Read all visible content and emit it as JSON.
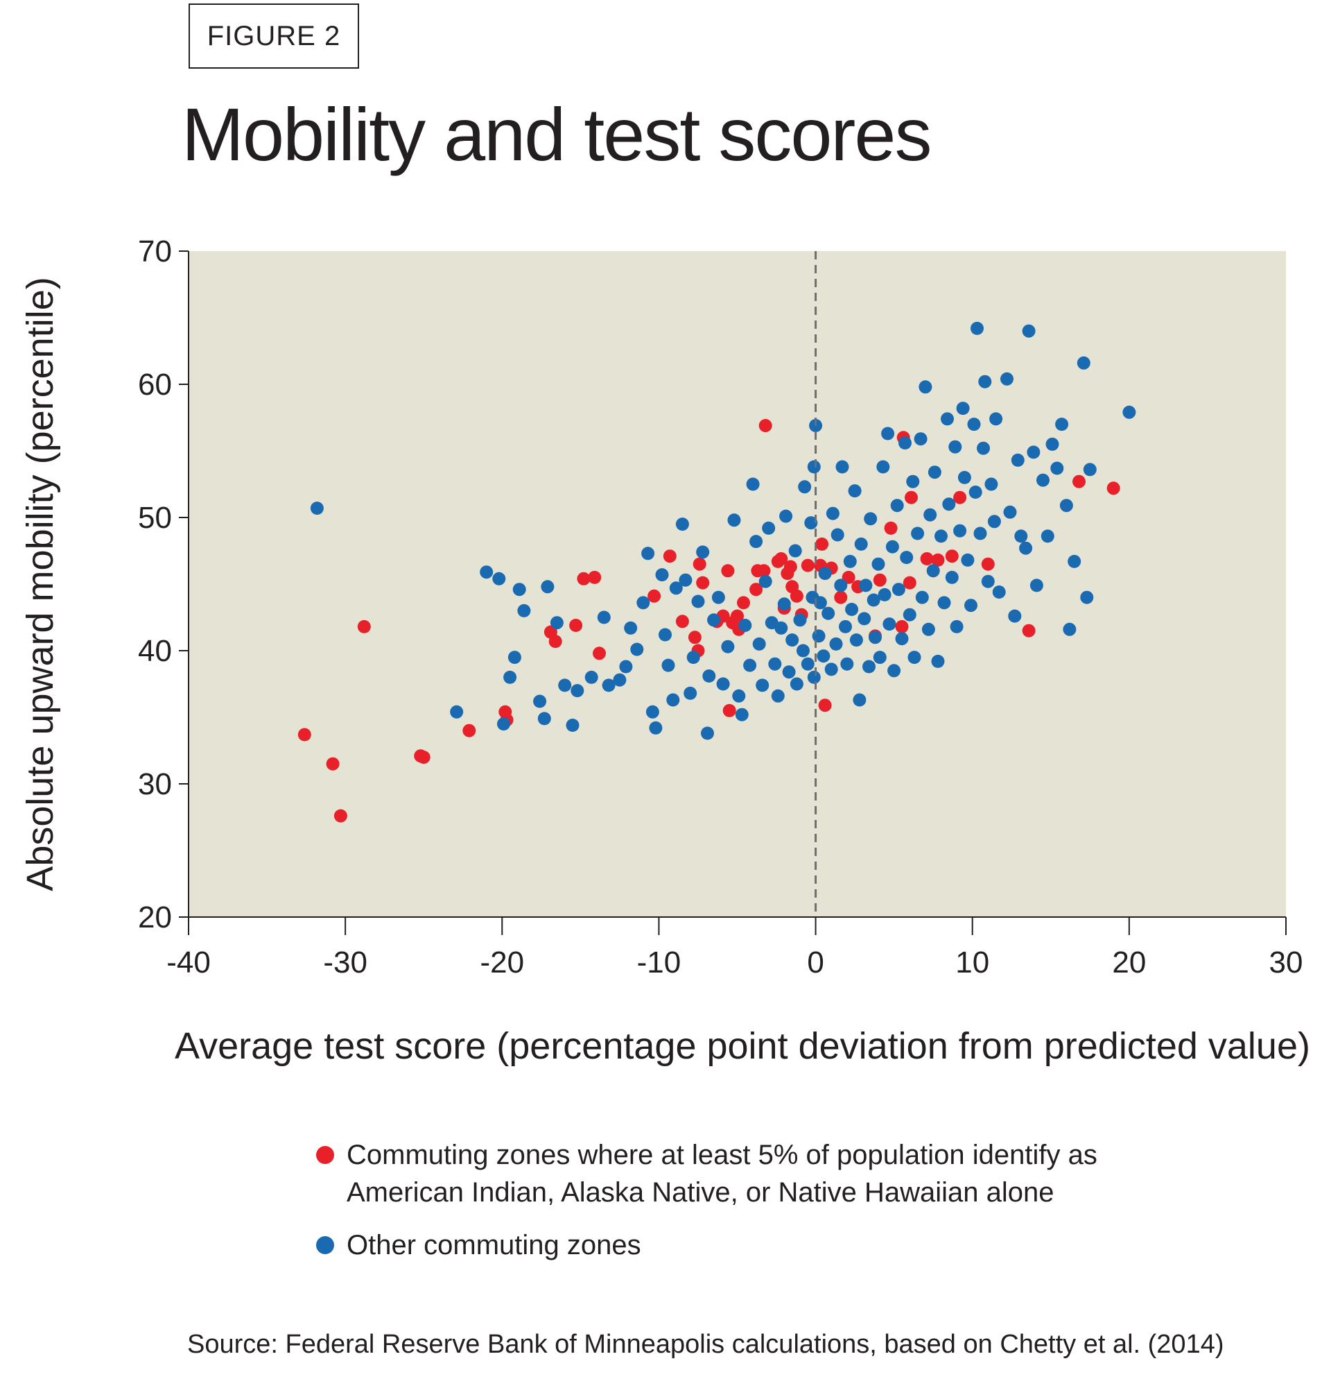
{
  "figure_label": "FIGURE 2",
  "colors": {
    "plot_background": "#e5e3d3",
    "series_red": "#e8202a",
    "series_blue": "#1a6ab2",
    "zero_line": "#6d6e71",
    "axis": "#231f20"
  },
  "legend": {
    "items": [
      {
        "color": "#e8202a",
        "line1": "Commuting zones where at least 5% of population identify as",
        "line2": "American Indian, Alaska Native, or Native Hawaiian alone"
      },
      {
        "color": "#1a6ab2",
        "line1": "Other commuting zones",
        "line2": ""
      }
    ]
  },
  "source": "Source: Federal Reserve Bank of Minneapolis calculations, based on Chetty et al. (2014)",
  "chart_data": {
    "type": "scatter",
    "title": "Mobility and test scores",
    "xlabel": "Average test score (percentage point deviation from predicted value)",
    "ylabel": "Absolute upward mobility (percentile)",
    "xlim": [
      -40,
      30
    ],
    "ylim": [
      20,
      70
    ],
    "x_ticks": [
      -40,
      -30,
      -20,
      -10,
      0,
      10,
      20,
      30
    ],
    "y_ticks": [
      20,
      30,
      40,
      50,
      60,
      70
    ],
    "x_tick_labels": [
      "-40",
      "-30",
      "-20",
      "-10",
      "0",
      "10",
      "20",
      "30"
    ],
    "y_tick_labels": [
      "20",
      "30",
      "40",
      "50",
      "60",
      "70"
    ],
    "reference_line": {
      "x": 0,
      "style": "dashed"
    },
    "grid": false,
    "legend_position": "bottom",
    "series": [
      {
        "name": "Commuting zones where at least 5% of population identify as American Indian, Alaska Native, or Native Hawaiian alone",
        "color": "#e8202a",
        "points": [
          [
            -32.6,
            33.7
          ],
          [
            -30.8,
            31.5
          ],
          [
            -30.3,
            27.6
          ],
          [
            -28.8,
            41.8
          ],
          [
            -25.2,
            32.1
          ],
          [
            -25.0,
            32.0
          ],
          [
            -22.1,
            34.0
          ],
          [
            -19.8,
            35.4
          ],
          [
            -19.7,
            34.8
          ],
          [
            -16.9,
            41.4
          ],
          [
            -16.6,
            40.7
          ],
          [
            -15.3,
            41.9
          ],
          [
            -14.8,
            45.4
          ],
          [
            -14.1,
            45.5
          ],
          [
            -13.8,
            39.8
          ],
          [
            -10.3,
            44.1
          ],
          [
            -9.3,
            47.1
          ],
          [
            -8.5,
            42.2
          ],
          [
            -7.7,
            41.0
          ],
          [
            -7.5,
            40.0
          ],
          [
            -7.2,
            45.1
          ],
          [
            -7.4,
            46.5
          ],
          [
            -6.3,
            42.2
          ],
          [
            -5.9,
            42.6
          ],
          [
            -5.5,
            35.5
          ],
          [
            -5.6,
            46.0
          ],
          [
            -5.3,
            42.1
          ],
          [
            -5.0,
            42.6
          ],
          [
            -4.9,
            41.6
          ],
          [
            -4.6,
            43.6
          ],
          [
            -3.8,
            44.6
          ],
          [
            -3.7,
            46.0
          ],
          [
            -3.3,
            46.0
          ],
          [
            -3.2,
            56.9
          ],
          [
            -2.4,
            46.7
          ],
          [
            -2.2,
            46.9
          ],
          [
            -2.0,
            43.2
          ],
          [
            -1.8,
            45.8
          ],
          [
            -1.6,
            46.3
          ],
          [
            -1.5,
            44.8
          ],
          [
            -1.2,
            44.1
          ],
          [
            -0.9,
            42.7
          ],
          [
            -0.5,
            46.4
          ],
          [
            0.3,
            46.4
          ],
          [
            0.4,
            48.0
          ],
          [
            0.6,
            35.9
          ],
          [
            1.0,
            46.2
          ],
          [
            1.6,
            44.0
          ],
          [
            2.1,
            45.5
          ],
          [
            2.7,
            44.8
          ],
          [
            3.8,
            41.1
          ],
          [
            4.1,
            45.3
          ],
          [
            4.8,
            49.2
          ],
          [
            5.5,
            41.8
          ],
          [
            5.6,
            56.0
          ],
          [
            6.0,
            45.1
          ],
          [
            6.1,
            51.5
          ],
          [
            7.1,
            46.9
          ],
          [
            7.8,
            46.8
          ],
          [
            8.7,
            47.1
          ],
          [
            9.2,
            51.5
          ],
          [
            11.0,
            46.5
          ],
          [
            13.6,
            41.5
          ],
          [
            16.8,
            52.7
          ],
          [
            19.0,
            52.2
          ]
        ]
      },
      {
        "name": "Other commuting zones",
        "color": "#1a6ab2",
        "points": [
          [
            -31.8,
            50.7
          ],
          [
            -22.9,
            35.4
          ],
          [
            -21.0,
            45.9
          ],
          [
            -20.2,
            45.4
          ],
          [
            -19.9,
            34.5
          ],
          [
            -19.5,
            38.0
          ],
          [
            -19.2,
            39.5
          ],
          [
            -18.9,
            44.6
          ],
          [
            -18.6,
            43.0
          ],
          [
            -17.6,
            36.2
          ],
          [
            -17.3,
            34.9
          ],
          [
            -17.1,
            44.8
          ],
          [
            -16.5,
            42.1
          ],
          [
            -16.0,
            37.4
          ],
          [
            -15.5,
            34.4
          ],
          [
            -15.2,
            37.0
          ],
          [
            -14.3,
            38.0
          ],
          [
            -13.5,
            42.5
          ],
          [
            -13.2,
            37.4
          ],
          [
            -12.5,
            37.8
          ],
          [
            -12.1,
            38.8
          ],
          [
            -11.8,
            41.7
          ],
          [
            -11.4,
            40.1
          ],
          [
            -11.0,
            43.6
          ],
          [
            -10.7,
            47.3
          ],
          [
            -10.4,
            35.4
          ],
          [
            -10.2,
            34.2
          ],
          [
            -9.8,
            45.7
          ],
          [
            -9.6,
            41.2
          ],
          [
            -9.4,
            38.9
          ],
          [
            -9.1,
            36.3
          ],
          [
            -8.9,
            44.7
          ],
          [
            -8.5,
            49.5
          ],
          [
            -8.3,
            45.3
          ],
          [
            -8.0,
            36.8
          ],
          [
            -7.8,
            39.5
          ],
          [
            -7.5,
            43.7
          ],
          [
            -7.2,
            47.4
          ],
          [
            -6.9,
            33.8
          ],
          [
            -6.8,
            38.1
          ],
          [
            -6.5,
            42.3
          ],
          [
            -6.2,
            44.0
          ],
          [
            -5.9,
            37.5
          ],
          [
            -5.6,
            40.3
          ],
          [
            -5.2,
            49.8
          ],
          [
            -4.9,
            36.6
          ],
          [
            -4.7,
            35.2
          ],
          [
            -4.5,
            41.9
          ],
          [
            -4.2,
            38.9
          ],
          [
            -4.0,
            52.5
          ],
          [
            -3.8,
            48.2
          ],
          [
            -3.6,
            40.5
          ],
          [
            -3.4,
            37.4
          ],
          [
            -3.2,
            45.2
          ],
          [
            -3.0,
            49.2
          ],
          [
            -2.8,
            42.1
          ],
          [
            -2.6,
            39.0
          ],
          [
            -2.4,
            36.6
          ],
          [
            -2.2,
            41.7
          ],
          [
            -2.0,
            43.5
          ],
          [
            -1.9,
            50.1
          ],
          [
            -1.7,
            38.4
          ],
          [
            -1.5,
            40.8
          ],
          [
            -1.3,
            47.5
          ],
          [
            -1.2,
            37.5
          ],
          [
            -1.0,
            42.3
          ],
          [
            -0.8,
            40.0
          ],
          [
            -0.7,
            52.3
          ],
          [
            -0.5,
            39.0
          ],
          [
            -0.3,
            49.6
          ],
          [
            -0.2,
            44.0
          ],
          [
            -0.1,
            53.8
          ],
          [
            -0.1,
            38.0
          ],
          [
            0.0,
            56.9
          ],
          [
            0.2,
            41.1
          ],
          [
            0.3,
            43.6
          ],
          [
            0.5,
            39.6
          ],
          [
            0.6,
            45.8
          ],
          [
            0.8,
            42.8
          ],
          [
            1.0,
            38.6
          ],
          [
            1.1,
            50.3
          ],
          [
            1.3,
            40.5
          ],
          [
            1.4,
            48.7
          ],
          [
            1.6,
            44.9
          ],
          [
            1.7,
            53.8
          ],
          [
            1.9,
            41.8
          ],
          [
            2.0,
            39.0
          ],
          [
            2.2,
            46.7
          ],
          [
            2.3,
            43.1
          ],
          [
            2.5,
            52.0
          ],
          [
            2.6,
            40.8
          ],
          [
            2.8,
            36.3
          ],
          [
            2.9,
            48.0
          ],
          [
            3.1,
            42.4
          ],
          [
            3.2,
            44.9
          ],
          [
            3.4,
            38.8
          ],
          [
            3.5,
            49.9
          ],
          [
            3.7,
            43.8
          ],
          [
            3.8,
            41.0
          ],
          [
            4.0,
            46.5
          ],
          [
            4.1,
            39.5
          ],
          [
            4.3,
            53.8
          ],
          [
            4.4,
            44.2
          ],
          [
            4.6,
            56.3
          ],
          [
            4.7,
            42.0
          ],
          [
            4.9,
            47.8
          ],
          [
            5.0,
            38.5
          ],
          [
            5.2,
            50.9
          ],
          [
            5.3,
            44.6
          ],
          [
            5.5,
            40.9
          ],
          [
            5.7,
            55.6
          ],
          [
            5.8,
            47.0
          ],
          [
            6.0,
            42.7
          ],
          [
            6.2,
            52.7
          ],
          [
            6.3,
            39.5
          ],
          [
            6.5,
            48.8
          ],
          [
            6.7,
            55.9
          ],
          [
            6.8,
            44.0
          ],
          [
            7.0,
            59.8
          ],
          [
            7.2,
            41.6
          ],
          [
            7.3,
            50.2
          ],
          [
            7.5,
            46.0
          ],
          [
            7.6,
            53.4
          ],
          [
            7.8,
            39.2
          ],
          [
            8.0,
            48.6
          ],
          [
            8.2,
            43.6
          ],
          [
            8.4,
            57.4
          ],
          [
            8.5,
            51.0
          ],
          [
            8.7,
            45.5
          ],
          [
            8.9,
            55.3
          ],
          [
            9.0,
            41.8
          ],
          [
            9.2,
            49.0
          ],
          [
            9.4,
            58.2
          ],
          [
            9.5,
            53.0
          ],
          [
            9.7,
            46.8
          ],
          [
            9.9,
            43.4
          ],
          [
            10.1,
            57.0
          ],
          [
            10.2,
            51.9
          ],
          [
            10.3,
            64.2
          ],
          [
            10.5,
            48.8
          ],
          [
            10.7,
            55.2
          ],
          [
            10.8,
            60.2
          ],
          [
            11.0,
            45.2
          ],
          [
            11.2,
            52.5
          ],
          [
            11.4,
            49.7
          ],
          [
            11.5,
            57.4
          ],
          [
            11.7,
            44.4
          ],
          [
            12.2,
            60.4
          ],
          [
            12.4,
            50.4
          ],
          [
            12.7,
            42.6
          ],
          [
            12.9,
            54.3
          ],
          [
            13.1,
            48.6
          ],
          [
            13.4,
            47.7
          ],
          [
            13.6,
            64.0
          ],
          [
            13.9,
            54.9
          ],
          [
            14.1,
            44.9
          ],
          [
            14.5,
            52.8
          ],
          [
            14.8,
            48.6
          ],
          [
            15.1,
            55.5
          ],
          [
            15.4,
            53.7
          ],
          [
            15.7,
            57.0
          ],
          [
            16.0,
            50.9
          ],
          [
            16.2,
            41.6
          ],
          [
            16.5,
            46.7
          ],
          [
            17.1,
            61.6
          ],
          [
            17.3,
            44.0
          ],
          [
            17.5,
            53.6
          ],
          [
            20.0,
            57.9
          ]
        ]
      }
    ]
  }
}
